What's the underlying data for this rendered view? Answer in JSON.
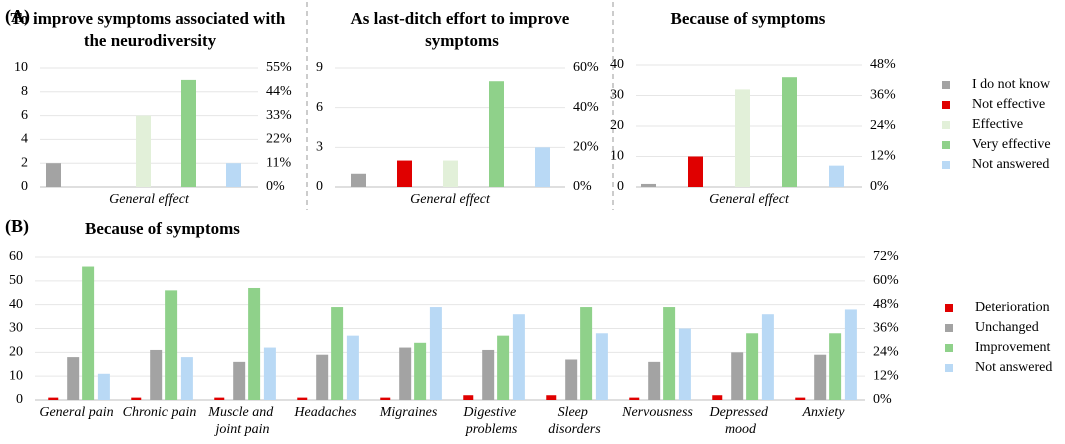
{
  "chart_data": [
    {
      "type": "bar",
      "panel_label": "(A)",
      "title": "To improve symptoms associated with the neurodiversity",
      "categories": [
        "General effect"
      ],
      "series": [
        {
          "color": "#a3a3a3",
          "values": [
            2
          ]
        },
        {
          "color": "#e00000",
          "values": [
            0
          ]
        },
        {
          "color": "#e2f0d9",
          "values": [
            6
          ]
        },
        {
          "color": "#8fd18a",
          "values": [
            9
          ]
        },
        {
          "color": "#b9d9f5",
          "values": [
            2
          ]
        }
      ],
      "ylim": [
        0,
        10
      ],
      "yticks": [
        0,
        2,
        4,
        6,
        8,
        10
      ],
      "y2lim": [
        0,
        55
      ],
      "y2ticks": [
        {
          "value": 0,
          "label": "0%"
        },
        {
          "value": 11,
          "label": "11%"
        },
        {
          "value": 22,
          "label": "22%"
        },
        {
          "value": 33,
          "label": "33%"
        },
        {
          "value": 44,
          "label": "44%"
        },
        {
          "value": 55,
          "label": "55%"
        }
      ],
      "grid": true
    },
    {
      "type": "bar",
      "title": "As last-ditch effort to improve symptoms",
      "categories": [
        "General effect"
      ],
      "series": [
        {
          "color": "#a3a3a3",
          "values": [
            1
          ]
        },
        {
          "color": "#e00000",
          "values": [
            2
          ]
        },
        {
          "color": "#e2f0d9",
          "values": [
            2
          ]
        },
        {
          "color": "#8fd18a",
          "values": [
            8
          ]
        },
        {
          "color": "#b9d9f5",
          "values": [
            3
          ]
        }
      ],
      "ylim": [
        0,
        9
      ],
      "yticks": [
        0,
        3,
        6,
        9
      ],
      "y2lim": [
        0,
        60
      ],
      "y2ticks": [
        {
          "value": 0,
          "label": "0%"
        },
        {
          "value": 20,
          "label": "20%"
        },
        {
          "value": 40,
          "label": "40%"
        },
        {
          "value": 60,
          "label": "60%"
        }
      ],
      "grid": true
    },
    {
      "type": "bar",
      "title": "Because of symptoms",
      "categories": [
        "General effect"
      ],
      "series": [
        {
          "name": "I do not know",
          "color": "#a3a3a3",
          "values": [
            1
          ]
        },
        {
          "name": "Not effective",
          "color": "#e00000",
          "values": [
            10
          ]
        },
        {
          "name": "Effective",
          "color": "#e2f0d9",
          "values": [
            32
          ]
        },
        {
          "name": "Very effective",
          "color": "#8fd18a",
          "values": [
            36
          ]
        },
        {
          "name": "Not answered",
          "color": "#b9d9f5",
          "values": [
            7
          ]
        }
      ],
      "ylim": [
        0,
        40
      ],
      "yticks": [
        0,
        10,
        20,
        30,
        40
      ],
      "y2lim": [
        0,
        48
      ],
      "y2ticks": [
        {
          "value": 0,
          "label": "0%"
        },
        {
          "value": 12,
          "label": "12%"
        },
        {
          "value": 24,
          "label": "24%"
        },
        {
          "value": 36,
          "label": "36%"
        },
        {
          "value": 48,
          "label": "48%"
        }
      ],
      "grid": true,
      "legend": "right"
    },
    {
      "type": "bar",
      "panel_label": "(B)",
      "title": "Because of symptoms",
      "categories": [
        "General pain",
        "Chronic pain",
        "Muscle and joint pain",
        "Headaches",
        "Migraines",
        "Digestive problems",
        "Sleep disorders",
        "Nervousness",
        "Depressed mood",
        "Anxiety"
      ],
      "series": [
        {
          "name": "Deterioration",
          "color": "#e00000",
          "values": [
            1,
            1,
            1,
            1,
            1,
            2,
            2,
            1,
            2,
            1
          ]
        },
        {
          "name": "Unchanged",
          "color": "#a3a3a3",
          "values": [
            18,
            21,
            16,
            19,
            22,
            21,
            17,
            16,
            20,
            19
          ]
        },
        {
          "name": "Improvement",
          "color": "#8fd18a",
          "values": [
            56,
            46,
            47,
            39,
            24,
            27,
            39,
            39,
            28,
            28
          ]
        },
        {
          "name": "Not answered",
          "color": "#b9d9f5",
          "values": [
            11,
            18,
            22,
            27,
            39,
            36,
            28,
            30,
            36,
            38
          ]
        }
      ],
      "ylim": [
        0,
        60
      ],
      "yticks": [
        0,
        10,
        20,
        30,
        40,
        50,
        60
      ],
      "y2lim": [
        0,
        72
      ],
      "y2ticks": [
        {
          "value": 0,
          "label": "0%"
        },
        {
          "value": 12,
          "label": "12%"
        },
        {
          "value": 24,
          "label": "24%"
        },
        {
          "value": 36,
          "label": "36%"
        },
        {
          "value": 48,
          "label": "48%"
        },
        {
          "value": 60,
          "label": "60%"
        },
        {
          "value": 72,
          "label": "72%"
        }
      ],
      "grid": true,
      "legend": "right"
    }
  ]
}
